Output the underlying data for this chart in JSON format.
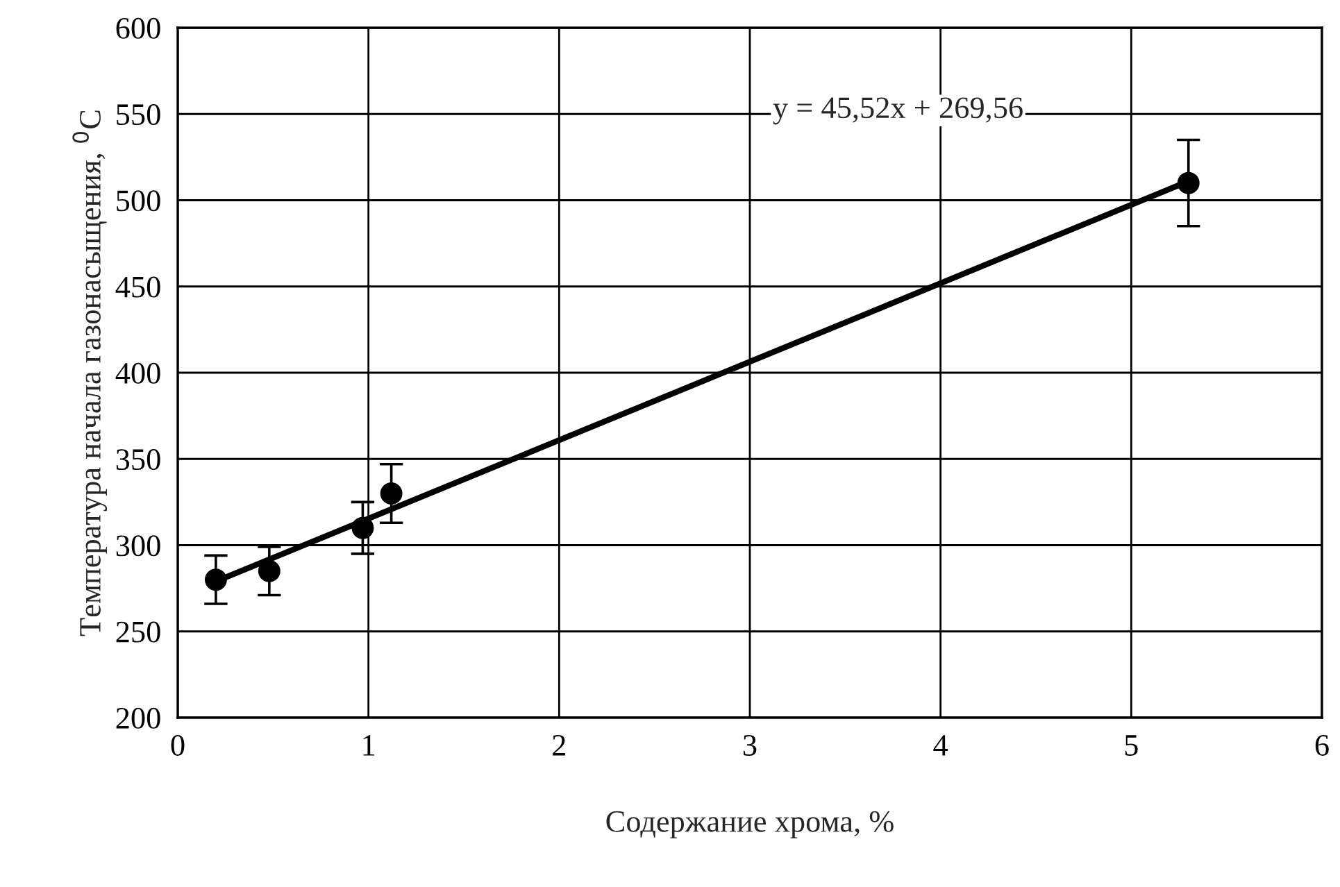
{
  "chart_data": {
    "type": "scatter",
    "xlabel": "Содержание хрома, %",
    "ylabel": "Температура начала газонасыщения, $^{0}$C",
    "xlim": [
      0,
      6
    ],
    "xticks": [
      0,
      1,
      2,
      3,
      4,
      5,
      6
    ],
    "ylim": [
      200,
      600
    ],
    "yticks": [
      200,
      250,
      300,
      350,
      400,
      450,
      500,
      550,
      600
    ],
    "grid": true,
    "series": [
      {
        "color": "#000000",
        "marker": "circle",
        "x": [
          0.2,
          0.48,
          0.97,
          1.12,
          5.3
        ],
        "values": [
          280,
          285,
          310,
          330,
          510
        ],
        "errors": [
          14,
          14,
          15,
          17,
          25
        ]
      },
      {
        "type": "line",
        "color": "#000000",
        "x": [
          0.2,
          5.3
        ],
        "values": [
          279,
          511
        ],
        "marker": "none",
        "line_style": "solid"
      }
    ],
    "annotations": [
      "y = 45,52x + 269,56"
    ]
  }
}
